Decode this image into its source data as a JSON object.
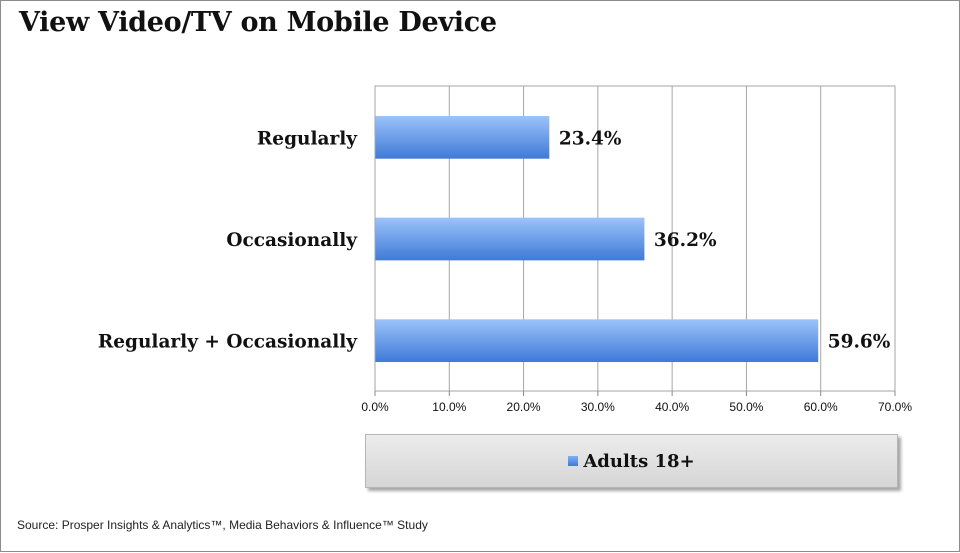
{
  "title": "View Video/TV on Mobile Device",
  "source": "Source: Prosper Insights & Analytics™, Media Behaviors & Influence™ Study",
  "colors": {
    "bar_top": "#9cc3fa",
    "bar_bottom": "#3f7ad8",
    "grid": "#a6a6a6"
  },
  "chart_data": {
    "type": "bar",
    "orientation": "horizontal",
    "categories": [
      "Regularly",
      "Occasionally",
      "Regularly + Occasionally"
    ],
    "series": [
      {
        "name": "Adults 18+",
        "values": [
          23.4,
          36.2,
          59.6
        ]
      }
    ],
    "value_labels": [
      "23.4%",
      "36.2%",
      "59.6%"
    ],
    "xlim": [
      0,
      70
    ],
    "x_ticks": [
      0,
      10,
      20,
      30,
      40,
      50,
      60,
      70
    ],
    "x_tick_labels": [
      "0.0%",
      "10.0%",
      "20.0%",
      "30.0%",
      "40.0%",
      "50.0%",
      "60.0%",
      "70.0%"
    ],
    "grid": true,
    "legend_position": "bottom"
  }
}
